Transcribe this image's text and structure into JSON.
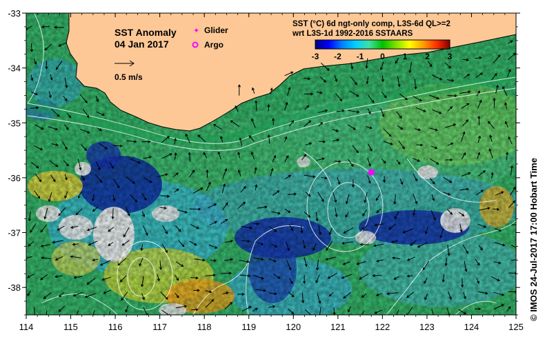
{
  "map": {
    "title": "SST Anomaly",
    "date": "04 Jan 2017",
    "scale_label": "0.5 m/s",
    "legend": {
      "glider_label": "Glider",
      "argo_label": "Argo",
      "glider_color": "#ff00ff",
      "argo_color": "#ff00ff"
    },
    "colorbar": {
      "title_line1": "SST (°C) 6d ngt-only comp, L3S-6d QL>=2",
      "title_line2": "wrt L3S-1d 1992-2016 SSTAARS",
      "ticks": [
        "-3",
        "-2",
        "-1",
        "0",
        "1",
        "2",
        "3"
      ],
      "colors": [
        "#00007f",
        "#0000ff",
        "#0080ff",
        "#00d0ff",
        "#40e0a0",
        "#00c000",
        "#80e000",
        "#ffff00",
        "#ffa000",
        "#ff3000",
        "#800000"
      ]
    },
    "x_axis": {
      "ticks": [
        "114",
        "115",
        "116",
        "117",
        "118",
        "119",
        "120",
        "121",
        "122",
        "123",
        "124",
        "125"
      ],
      "range": [
        114,
        125
      ]
    },
    "y_axis": {
      "ticks": [
        "-33",
        "-34",
        "-35",
        "-36",
        "-37",
        "-38"
      ],
      "range": [
        -38.5,
        -33
      ]
    },
    "glider_position": {
      "lon": 121.75,
      "lat": -35.9
    },
    "colors": {
      "land": "#fdc896",
      "no_data": "#ffffff",
      "ocean_base": "#38c070"
    },
    "credit": "© IMOS 24-Jul-2017 17:00 Hobart Time"
  }
}
